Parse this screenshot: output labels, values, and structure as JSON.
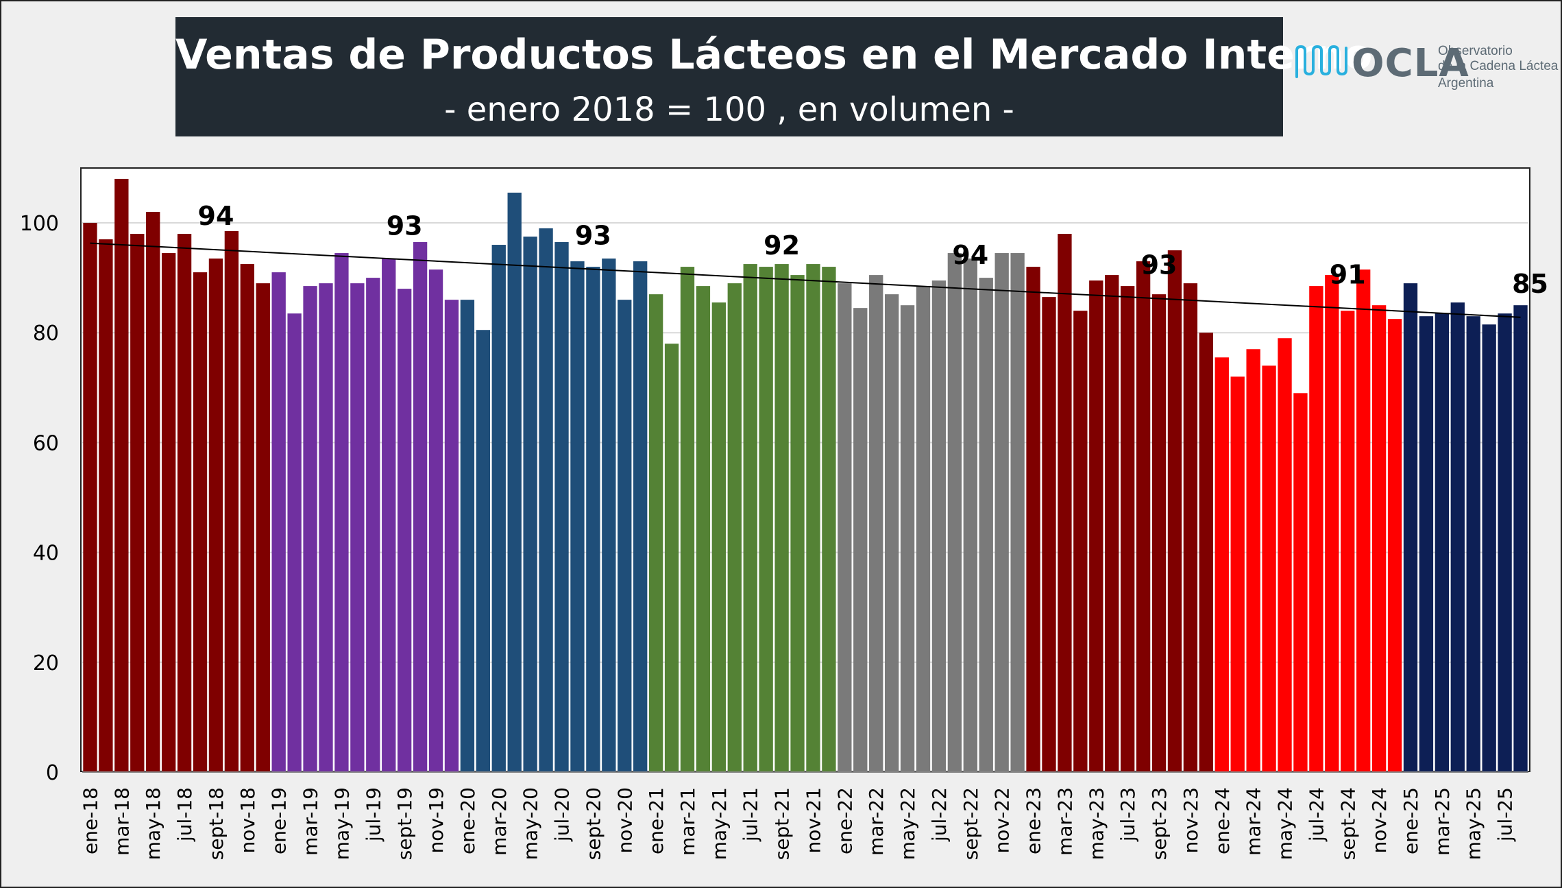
{
  "title": "Ventas de Productos Lácteos en el Mercado Interno",
  "subtitle": "- enero 2018 = 100 , en volumen -",
  "logo": {
    "word": "OCLA",
    "line1": "Observatorio",
    "line2": "de la Cadena Láctea",
    "line3": "Argentina",
    "icon": "wave-bars-icon",
    "icon_color": "#29b0de",
    "text_color": "#5d6b75"
  },
  "chart_data": {
    "type": "bar",
    "ylim": [
      0,
      110
    ],
    "yticks": [
      0,
      20,
      40,
      60,
      80,
      100
    ],
    "grid": true,
    "trendline": {
      "start": 96.3,
      "end": 82.8
    },
    "year_colors": [
      "#7f0000",
      "#7030a0",
      "#1f4e79",
      "#548235",
      "#7a7a7a",
      "#7f0000",
      "#ff0000",
      "#0d1f55"
    ],
    "x_labels": [
      "ene-18",
      "mar-18",
      "may-18",
      "jul-18",
      "sept-18",
      "nov-18",
      "ene-19",
      "mar-19",
      "may-19",
      "jul-19",
      "sept-19",
      "nov-19",
      "ene-20",
      "mar-20",
      "may-20",
      "jul-20",
      "sept-20",
      "nov-20",
      "ene-21",
      "mar-21",
      "may-21",
      "jul-21",
      "sept-21",
      "nov-21",
      "ene-22",
      "mar-22",
      "may-22",
      "jul-22",
      "sept-22",
      "nov-22",
      "ene-23",
      "mar-23",
      "may-23",
      "jul-23",
      "sept-23",
      "nov-23",
      "ene-24",
      "mar-24",
      "may-24",
      "jul-24",
      "sept-24",
      "nov-24",
      "ene-25",
      "mar-25",
      "may-25",
      "jul-25"
    ],
    "values": [
      100,
      97,
      108,
      98,
      102,
      94.5,
      98,
      91,
      93.5,
      98.5,
      92.5,
      89,
      91,
      83.5,
      88.5,
      89,
      94.5,
      89,
      90,
      93.5,
      88,
      96.5,
      91.5,
      86,
      86,
      80.5,
      96,
      105.5,
      97.5,
      99,
      96.5,
      93,
      92,
      93.5,
      86,
      93,
      87,
      78,
      92,
      88.5,
      85.5,
      89,
      92.5,
      92,
      92.5,
      90.5,
      92.5,
      92,
      89,
      84.5,
      90.5,
      87,
      85,
      88.5,
      89.5,
      94.5,
      93.5,
      90,
      94.5,
      94.5,
      92,
      86.5,
      98,
      84,
      89.5,
      90.5,
      88.5,
      93,
      87,
      95,
      89,
      80,
      75.5,
      72,
      77,
      74,
      79,
      69,
      88.5,
      90.5,
      84,
      91.5,
      85,
      82.5,
      89,
      83,
      83.5,
      85.5,
      83,
      81.5,
      83.5,
      85
    ],
    "annotations": [
      {
        "year_index": 0,
        "bar": 8,
        "label": "94"
      },
      {
        "year_index": 1,
        "bar": 20,
        "label": "93"
      },
      {
        "year_index": 2,
        "bar": 32,
        "label": "93"
      },
      {
        "year_index": 3,
        "bar": 44,
        "label": "92"
      },
      {
        "year_index": 4,
        "bar": 56,
        "label": "94"
      },
      {
        "year_index": 5,
        "bar": 68,
        "label": "93"
      },
      {
        "year_index": 6,
        "bar": 80,
        "label": "91"
      },
      {
        "year_index": 7,
        "bar": 91,
        "label": "85"
      }
    ]
  }
}
